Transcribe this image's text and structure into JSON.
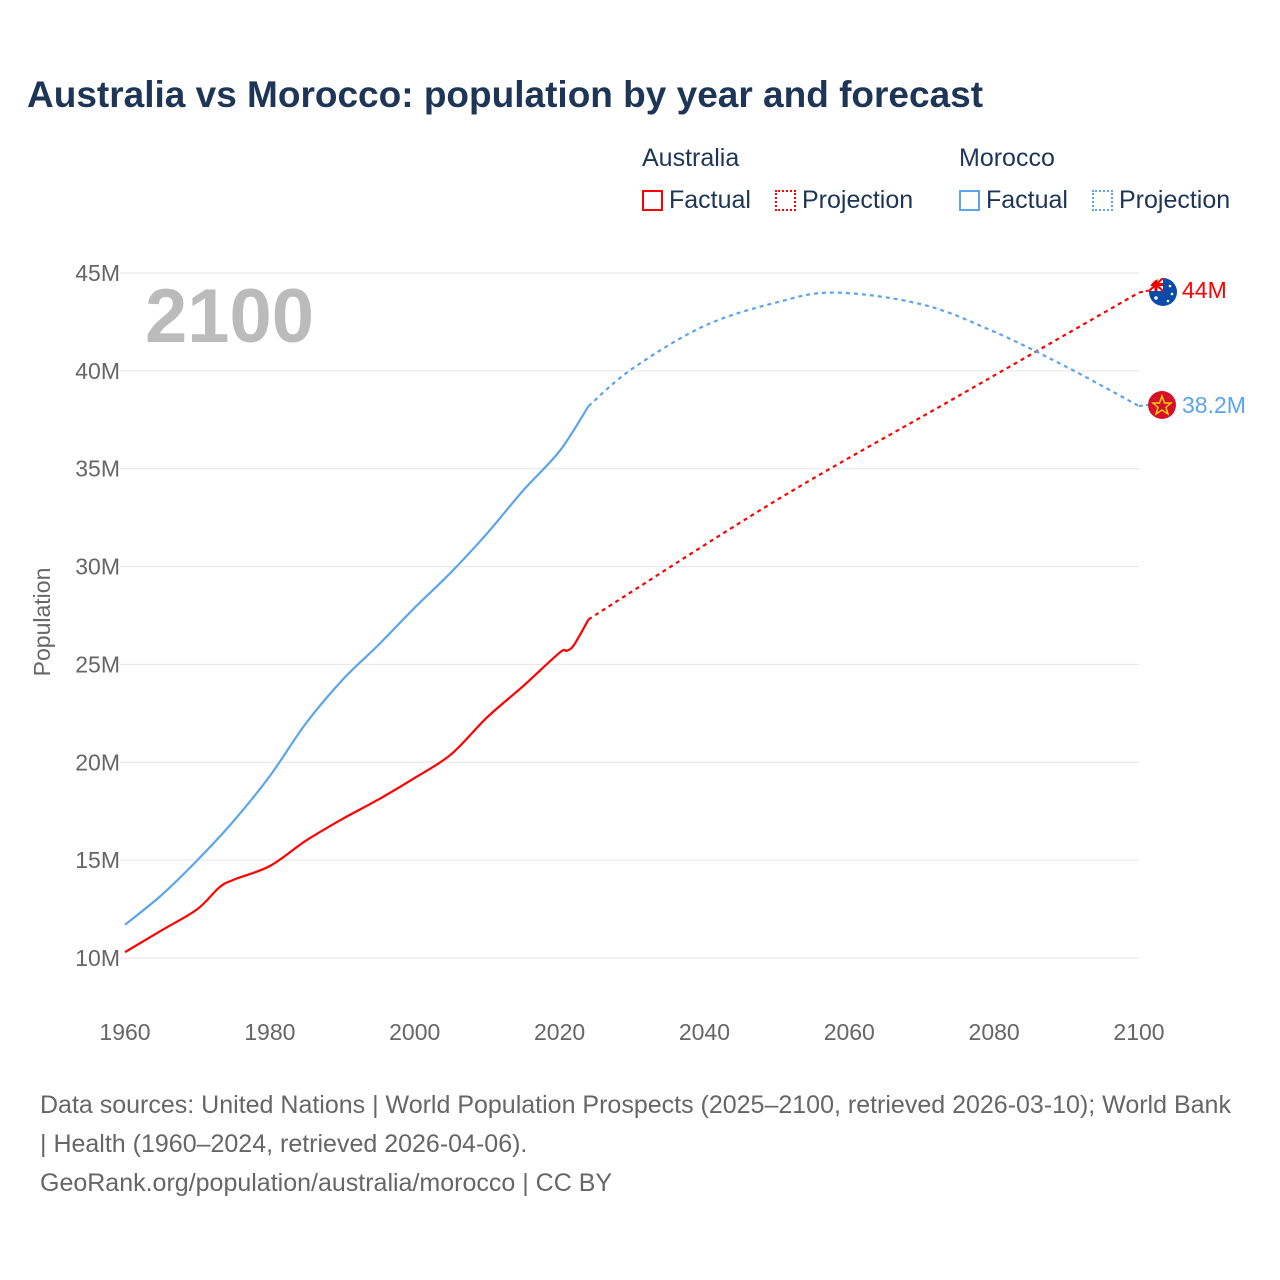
{
  "title": "Australia vs Morocco: population by year and forecast",
  "legend": {
    "australia": "Australia",
    "morocco": "Morocco",
    "factual": "Factual",
    "projection": "Projection"
  },
  "year_overlay": "2100",
  "colors": {
    "australia": "#ff0000",
    "morocco": "#5ba4ee"
  },
  "sources": {
    "line1": "Data sources: United Nations | World Population Prospects (2025–2100, retrieved 2026-03-10); World Bank | Health (1960–2024, retrieved 2026-04-06).",
    "line2": "GeoRank.org/population/australia/morocco | CC BY"
  },
  "chart_data": {
    "type": "line",
    "ylabel": "Population",
    "xlim": [
      1960,
      2100
    ],
    "ylim": [
      10,
      45
    ],
    "yticks": [
      10,
      15,
      20,
      25,
      30,
      35,
      40,
      45
    ],
    "ytick_labels": [
      "10M",
      "15M",
      "20M",
      "25M",
      "30M",
      "35M",
      "40M",
      "45M"
    ],
    "xticks": [
      1960,
      1980,
      2000,
      2020,
      2040,
      2060,
      2080,
      2100
    ],
    "xtick_labels": [
      "1960",
      "1980",
      "2000",
      "2020",
      "2040",
      "2060",
      "2080",
      "2100"
    ],
    "series": [
      {
        "name": "Australia",
        "kind": "factual",
        "x": [
          1960,
          1965,
          1970,
          1973,
          1975,
          1980,
          1985,
          1990,
          1995,
          2000,
          2005,
          2010,
          2015,
          2020,
          2021,
          2022,
          2024
        ],
        "y": [
          10.3,
          11.4,
          12.5,
          13.6,
          14.0,
          14.7,
          16.0,
          17.1,
          18.1,
          19.2,
          20.4,
          22.3,
          23.9,
          25.6,
          25.7,
          26.0,
          27.3
        ]
      },
      {
        "name": "Australia",
        "kind": "projection",
        "x": [
          2024,
          2050,
          2075,
          2100
        ],
        "y": [
          27.3,
          33.4,
          38.7,
          44.0
        ]
      },
      {
        "name": "Morocco",
        "kind": "factual",
        "x": [
          1960,
          1965,
          1970,
          1975,
          1980,
          1985,
          1990,
          1995,
          2000,
          2005,
          2010,
          2015,
          2020,
          2024
        ],
        "y": [
          11.7,
          13.2,
          15.0,
          17.0,
          19.3,
          22.0,
          24.2,
          26.0,
          27.9,
          29.7,
          31.7,
          33.9,
          35.9,
          38.2
        ]
      },
      {
        "name": "Morocco",
        "kind": "projection",
        "x": [
          2024,
          2030,
          2040,
          2050,
          2058,
          2070,
          2080,
          2090,
          2100
        ],
        "y": [
          38.2,
          40.1,
          42.3,
          43.5,
          44.0,
          43.4,
          42.0,
          40.2,
          38.2
        ]
      }
    ],
    "end_labels": {
      "australia": "44M",
      "morocco": "38.2M"
    }
  }
}
